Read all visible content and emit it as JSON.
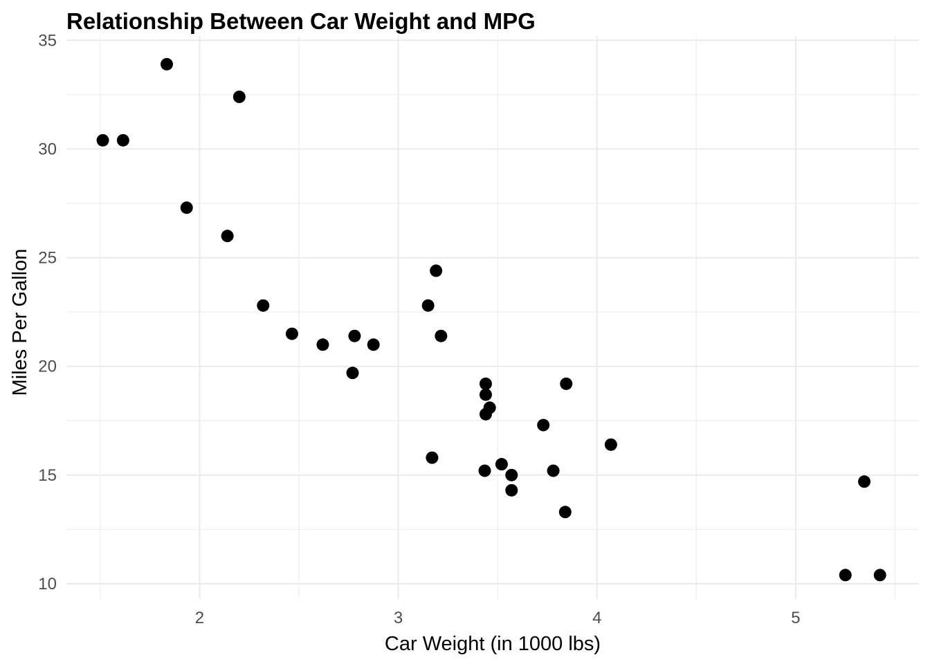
{
  "chart_data": {
    "type": "scatter",
    "title": "Relationship Between Car Weight and MPG",
    "xlabel": "Car Weight (in 1000 lbs)",
    "ylabel": "Miles Per Gallon",
    "xlim": [
      1.33,
      5.62
    ],
    "ylim": [
      9.3,
      35.2
    ],
    "xticks": [
      2,
      3,
      4,
      5
    ],
    "yticks": [
      10,
      15,
      20,
      25,
      30,
      35
    ],
    "x_minor_gridlines": [
      1.5,
      2.5,
      3.5,
      4.5,
      5.5
    ],
    "y_minor_gridlines": [
      12.5,
      17.5,
      22.5,
      27.5,
      32.5
    ],
    "grid": true,
    "legend": "none",
    "point_color": "#000000",
    "grid_color": "#ebebeb",
    "points": [
      {
        "x": 2.62,
        "y": 21.0
      },
      {
        "x": 2.875,
        "y": 21.0
      },
      {
        "x": 2.32,
        "y": 22.8
      },
      {
        "x": 3.215,
        "y": 21.4
      },
      {
        "x": 3.44,
        "y": 18.7
      },
      {
        "x": 3.46,
        "y": 18.1
      },
      {
        "x": 3.57,
        "y": 14.3
      },
      {
        "x": 3.19,
        "y": 24.4
      },
      {
        "x": 3.15,
        "y": 22.8
      },
      {
        "x": 3.44,
        "y": 19.2
      },
      {
        "x": 3.44,
        "y": 17.8
      },
      {
        "x": 4.07,
        "y": 16.4
      },
      {
        "x": 3.73,
        "y": 17.3
      },
      {
        "x": 3.78,
        "y": 15.2
      },
      {
        "x": 5.25,
        "y": 10.4
      },
      {
        "x": 5.424,
        "y": 10.4
      },
      {
        "x": 5.345,
        "y": 14.7
      },
      {
        "x": 2.2,
        "y": 32.4
      },
      {
        "x": 1.615,
        "y": 30.4
      },
      {
        "x": 1.835,
        "y": 33.9
      },
      {
        "x": 2.465,
        "y": 21.5
      },
      {
        "x": 3.52,
        "y": 15.5
      },
      {
        "x": 3.435,
        "y": 15.2
      },
      {
        "x": 3.84,
        "y": 13.3
      },
      {
        "x": 3.845,
        "y": 19.2
      },
      {
        "x": 1.935,
        "y": 27.3
      },
      {
        "x": 2.14,
        "y": 26.0
      },
      {
        "x": 1.513,
        "y": 30.4
      },
      {
        "x": 3.17,
        "y": 15.8
      },
      {
        "x": 2.77,
        "y": 19.7
      },
      {
        "x": 3.57,
        "y": 15.0
      },
      {
        "x": 2.78,
        "y": 21.4
      }
    ]
  }
}
